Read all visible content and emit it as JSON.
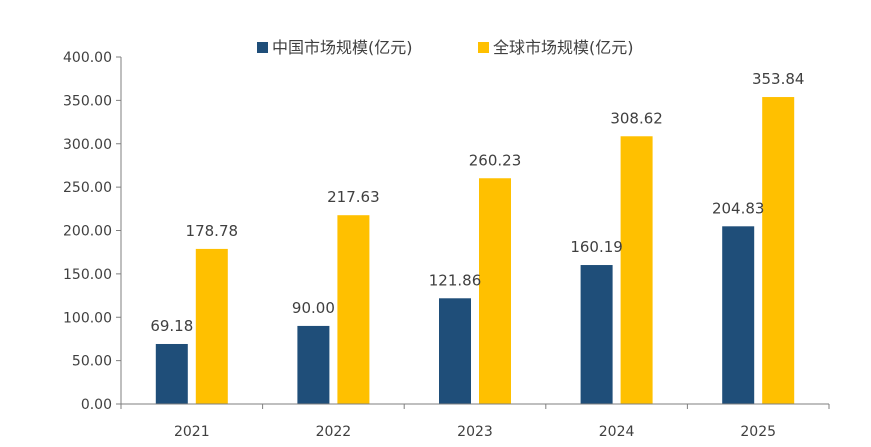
{
  "chart_data": {
    "type": "bar",
    "categories": [
      "2021",
      "2022",
      "2023",
      "2024",
      "2025"
    ],
    "series": [
      {
        "name": "中国市场规模(亿元)",
        "color": "#1f4e79",
        "values": [
          69.18,
          90.0,
          121.86,
          160.19,
          204.83
        ],
        "labels": [
          "69.18",
          "90.00",
          "121.86",
          "160.19",
          "204.83"
        ]
      },
      {
        "name": "全球市场规模(亿元)",
        "color": "#ffc000",
        "values": [
          178.78,
          217.63,
          260.23,
          308.62,
          353.84
        ],
        "labels": [
          "178.78",
          "217.63",
          "260.23",
          "308.62",
          "353.84"
        ]
      }
    ],
    "ylim": [
      0,
      400
    ],
    "yticks": [
      "0.00",
      "50.00",
      "100.00",
      "150.00",
      "200.00",
      "250.00",
      "300.00",
      "350.00",
      "400.00"
    ],
    "grid": false,
    "legend": "top-center"
  }
}
